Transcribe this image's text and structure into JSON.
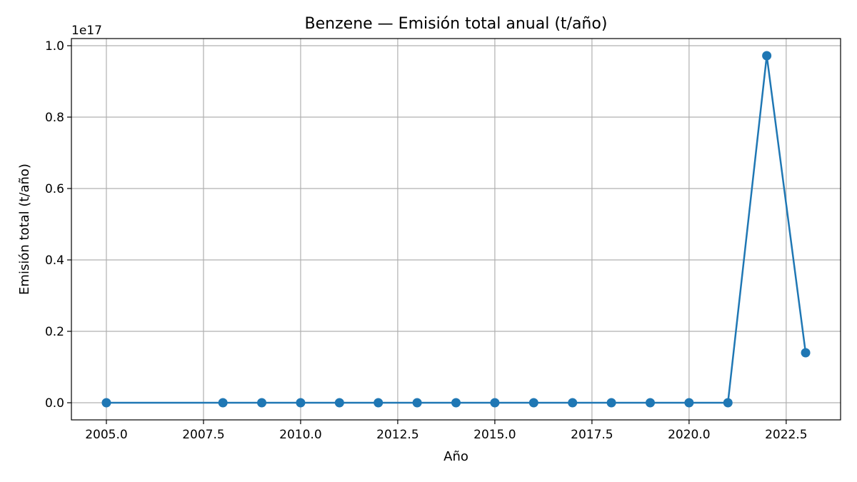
{
  "chart_data": {
    "type": "line",
    "title": "Benzene — Emisión total anual (t/año)",
    "xlabel": "Año",
    "ylabel": "Emisión total (t/año)",
    "offset_label": "1e17",
    "xlim": [
      2004.1,
      2023.9
    ],
    "ylim": [
      -0.048,
      1.02
    ],
    "y_scale_factor": 1e+17,
    "x_ticks": [
      2005.0,
      2007.5,
      2010.0,
      2012.5,
      2015.0,
      2017.5,
      2020.0,
      2022.5
    ],
    "x_tick_labels": [
      "2005.0",
      "2007.5",
      "2010.0",
      "2012.5",
      "2015.0",
      "2017.5",
      "2020.0",
      "2022.5"
    ],
    "y_ticks": [
      0.0,
      0.2,
      0.4,
      0.6,
      0.8,
      1.0
    ],
    "y_tick_labels": [
      "0.0",
      "0.2",
      "0.4",
      "0.6",
      "0.8",
      "1.0"
    ],
    "grid": true,
    "series": [
      {
        "color": "#1f77b4",
        "marker": "circle",
        "x": [
          2005,
          2008,
          2009,
          2010,
          2011,
          2012,
          2013,
          2014,
          2015,
          2016,
          2017,
          2018,
          2019,
          2020,
          2021,
          2022,
          2023
        ],
        "y": [
          0,
          0,
          0,
          0,
          0,
          0,
          0,
          0,
          0,
          0,
          0,
          0,
          0,
          0,
          0,
          0.972,
          0.14
        ]
      }
    ]
  }
}
